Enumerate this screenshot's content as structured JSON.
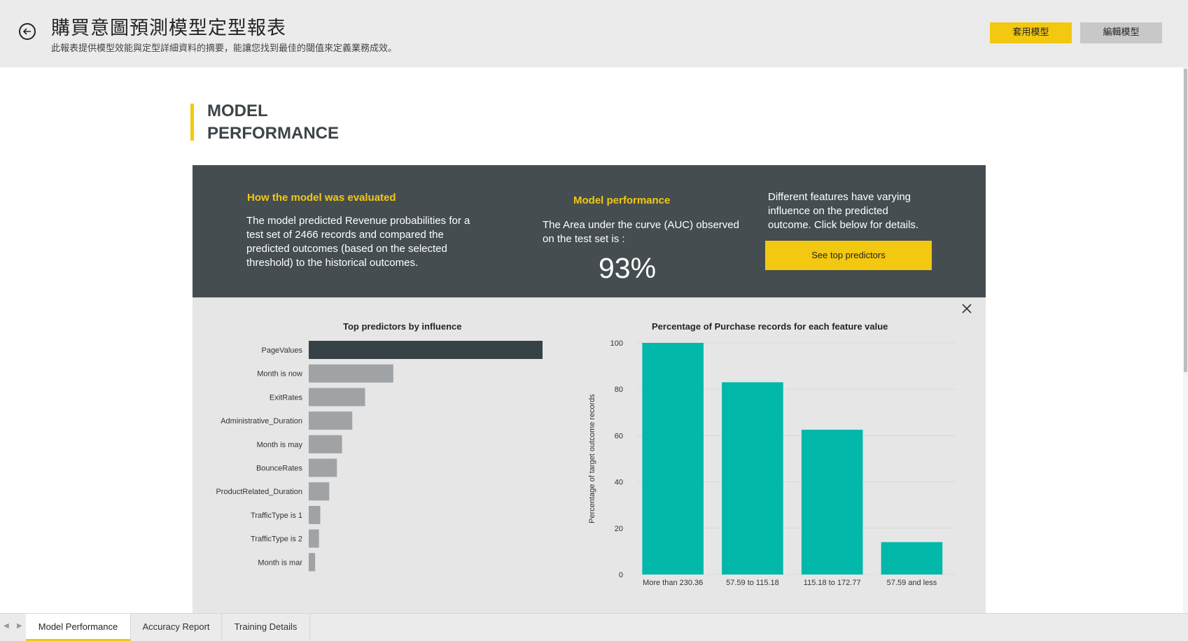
{
  "header": {
    "title": "購買意圖預測模型定型報表",
    "subtitle": "此報表提供模型效能與定型詳細資料的摘要，能讓您找到最佳的閾值來定義業務成效。",
    "apply_label": "套用模型",
    "edit_label": "編輯模型",
    "back_icon": "back-arrow-icon"
  },
  "section": {
    "title": "MODEL PERFORMANCE"
  },
  "evaluation": {
    "heading": "How the model was evaluated",
    "text": "The model predicted Revenue probabilities for a test set of 2466 records and compared the predicted outcomes (based on the selected threshold) to the historical outcomes."
  },
  "performance": {
    "heading": "Model performance",
    "text": "The Area under the curve (AUC) observed on the test set is :",
    "auc": "93%"
  },
  "features": {
    "text": "Different features have varying influence on the predicted outcome.  Click below for details.",
    "button_label": "See top predictors"
  },
  "colors": {
    "accent": "#f2c811",
    "dark_panel": "#454d50",
    "bar_highlight": "#374246",
    "bar_grey": "#a0a3a6",
    "teal": "#01b8aa"
  },
  "chart_data": [
    {
      "type": "bar",
      "orientation": "horizontal",
      "title": "Top predictors by influence",
      "categories": [
        "PageValues",
        "Month is now",
        "ExitRates",
        "Administrative_Duration",
        "Month is may",
        "BounceRates",
        "ProductRelated_Duration",
        "TrafficType is 1",
        "TrafficType is 2",
        "Month is mar"
      ],
      "values": [
        100,
        33,
        22,
        17,
        13,
        11,
        8,
        4.5,
        4,
        2.5
      ],
      "highlighted": "PageValues"
    },
    {
      "type": "bar",
      "title": "Percentage of Purchase records for each feature value",
      "ylabel": "Percentage of target outcome records",
      "categories": [
        "More than 230.36",
        "57.59 to 115.18",
        "115.18 to 172.77",
        "57.59 and less"
      ],
      "values": [
        100,
        83,
        62.5,
        14
      ],
      "ylim": [
        0,
        100
      ],
      "yticks": [
        0,
        20,
        40,
        60,
        80,
        100
      ],
      "grid": true
    }
  ],
  "tabs": [
    {
      "label": "Model Performance",
      "active": true
    },
    {
      "label": "Accuracy Report",
      "active": false
    },
    {
      "label": "Training Details",
      "active": false
    }
  ]
}
